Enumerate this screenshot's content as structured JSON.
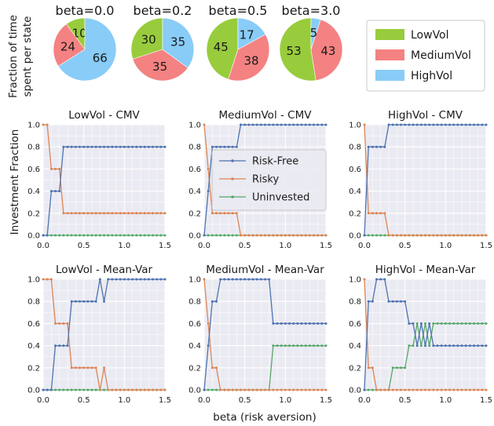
{
  "colors": {
    "LowVol": "#98cc3c",
    "MediumVol": "#f48282",
    "HighVol": "#88ccf7",
    "Risk-Free": "#4c72b0",
    "Risky": "#dd8452",
    "Uninvested": "#55a868"
  },
  "chart_data": {
    "pies": {
      "type": "pie",
      "ylabel_lines": [
        "Fraction of time",
        "spent per state"
      ],
      "legend": {
        "placement": "top-right",
        "labels": [
          "LowVol",
          "MediumVol",
          "HighVol"
        ]
      },
      "charts": [
        {
          "title": "beta=0.0",
          "labels": [
            "LowVol",
            "MediumVol",
            "HighVol"
          ],
          "values": [
            10,
            24,
            66
          ]
        },
        {
          "title": "beta=0.2",
          "labels": [
            "LowVol",
            "MediumVol",
            "HighVol"
          ],
          "values": [
            30,
            35,
            35
          ]
        },
        {
          "title": "beta=0.5",
          "labels": [
            "LowVol",
            "MediumVol",
            "HighVol"
          ],
          "values": [
            45,
            38,
            17
          ]
        },
        {
          "title": "beta=3.0",
          "labels": [
            "LowVol",
            "MediumVol",
            "HighVol"
          ],
          "values": [
            53,
            43,
            5
          ]
        }
      ]
    },
    "lines": {
      "type": "line",
      "ylabel": "Investment Fraction",
      "xlabel": "beta (risk aversion)",
      "xlim": [
        0,
        1.5
      ],
      "ylim": [
        0,
        1.0
      ],
      "xticks": [
        "0.0",
        "0.5",
        "1.0",
        "1.5"
      ],
      "yticks": [
        "0.0",
        "0.2",
        "0.4",
        "0.6",
        "0.8",
        "1.0"
      ],
      "grid": true,
      "legend": {
        "placement": "center",
        "labels": [
          "Risk-Free",
          "Risky",
          "Uninvested"
        ]
      },
      "panels": [
        {
          "title": "LowVol - CMV",
          "series": [
            {
              "name": "Risk-Free",
              "x": [
                0,
                0.05,
                0.1,
                0.15,
                0.2,
                0.25,
                0.3,
                1.5
              ],
              "y": [
                0,
                0,
                0.4,
                0.4,
                0.4,
                0.8,
                0.8,
                0.8
              ]
            },
            {
              "name": "Risky",
              "x": [
                0,
                0.05,
                0.1,
                0.15,
                0.2,
                0.25,
                0.3,
                1.5
              ],
              "y": [
                1,
                1,
                0.6,
                0.6,
                0.6,
                0.2,
                0.2,
                0.2
              ]
            },
            {
              "name": "Uninvested",
              "x": [
                0,
                1.5
              ],
              "y": [
                0,
                0
              ]
            }
          ]
        },
        {
          "title": "MediumVol - CMV",
          "series": [
            {
              "name": "Risk-Free",
              "x": [
                0,
                0.05,
                0.1,
                0.15,
                0.2,
                0.25,
                0.3,
                0.35,
                0.4,
                0.45,
                1.5
              ],
              "y": [
                0,
                0.4,
                0.8,
                0.8,
                0.8,
                0.8,
                0.8,
                0.8,
                0.8,
                1,
                1
              ]
            },
            {
              "name": "Risky",
              "x": [
                0,
                0.05,
                0.1,
                0.15,
                0.2,
                0.25,
                0.3,
                0.35,
                0.4,
                0.45,
                1.5
              ],
              "y": [
                1,
                0.6,
                0.2,
                0.2,
                0.2,
                0.2,
                0.2,
                0.2,
                0.2,
                0,
                0
              ]
            },
            {
              "name": "Uninvested",
              "x": [
                0,
                1.5
              ],
              "y": [
                0,
                0
              ]
            }
          ]
        },
        {
          "title": "HighVol - CMV",
          "series": [
            {
              "name": "Risk-Free",
              "x": [
                0,
                0.05,
                0.1,
                0.15,
                0.2,
                0.25,
                0.3,
                1.5
              ],
              "y": [
                0,
                0.8,
                0.8,
                0.8,
                0.8,
                0.8,
                1,
                1
              ]
            },
            {
              "name": "Risky",
              "x": [
                0,
                0.05,
                0.1,
                0.15,
                0.2,
                0.25,
                0.3,
                1.5
              ],
              "y": [
                1,
                0.2,
                0.2,
                0.2,
                0.2,
                0.2,
                0,
                0
              ]
            },
            {
              "name": "Uninvested",
              "x": [
                0,
                1.5
              ],
              "y": [
                0,
                0
              ]
            }
          ]
        },
        {
          "title": "LowVol - Mean-Var",
          "series": [
            {
              "name": "Risk-Free",
              "x": [
                0,
                0.1,
                0.15,
                0.2,
                0.25,
                0.3,
                0.35,
                0.4,
                0.45,
                0.5,
                0.55,
                0.6,
                0.65,
                0.7,
                0.75,
                0.8,
                0.85,
                1.5
              ],
              "y": [
                0,
                0,
                0.4,
                0.4,
                0.4,
                0.4,
                0.8,
                0.8,
                0.8,
                0.8,
                0.8,
                0.8,
                0.8,
                1,
                0.8,
                1,
                1,
                1
              ]
            },
            {
              "name": "Risky",
              "x": [
                0,
                0.1,
                0.15,
                0.2,
                0.25,
                0.3,
                0.35,
                0.4,
                0.45,
                0.5,
                0.55,
                0.6,
                0.65,
                0.7,
                0.75,
                0.8,
                0.85,
                1.5
              ],
              "y": [
                1,
                1,
                0.6,
                0.6,
                0.6,
                0.6,
                0.2,
                0.2,
                0.2,
                0.2,
                0.2,
                0.2,
                0.2,
                0,
                0.2,
                0,
                0,
                0
              ]
            },
            {
              "name": "Uninvested",
              "x": [
                0,
                1.5
              ],
              "y": [
                0,
                0
              ]
            }
          ]
        },
        {
          "title": "MediumVol - Mean-Var",
          "series": [
            {
              "name": "Risk-Free",
              "x": [
                0,
                0.05,
                0.1,
                0.15,
                0.2,
                0.25,
                0.75,
                0.8,
                0.85,
                1.5
              ],
              "y": [
                0,
                0.4,
                0.8,
                0.8,
                1,
                1,
                1,
                1,
                0.6,
                0.6
              ]
            },
            {
              "name": "Risky",
              "x": [
                0,
                0.05,
                0.1,
                0.15,
                0.2,
                0.25,
                1.5
              ],
              "y": [
                1,
                0.6,
                0.2,
                0.2,
                0,
                0,
                0
              ]
            },
            {
              "name": "Uninvested",
              "x": [
                0,
                0.8,
                0.85,
                1.5
              ],
              "y": [
                0,
                0,
                0.4,
                0.4
              ]
            }
          ]
        },
        {
          "title": "HighVol - Mean-Var",
          "series": [
            {
              "name": "Risk-Free",
              "x": [
                0,
                0.05,
                0.1,
                0.15,
                0.2,
                0.25,
                0.3,
                0.35,
                0.4,
                0.45,
                0.5,
                0.55,
                0.6,
                0.65,
                0.7,
                0.75,
                0.8,
                0.85,
                1.5
              ],
              "y": [
                0,
                0.8,
                0.8,
                1,
                1,
                1,
                0.8,
                0.8,
                0.8,
                0.8,
                0.8,
                0.6,
                0.6,
                0.4,
                0.6,
                0.4,
                0.6,
                0.4,
                0.4
              ]
            },
            {
              "name": "Risky",
              "x": [
                0,
                0.05,
                0.1,
                0.15,
                0.2,
                0.25,
                0.3,
                1.5
              ],
              "y": [
                1,
                0.2,
                0.2,
                0,
                0,
                0,
                0,
                0
              ]
            },
            {
              "name": "Uninvested",
              "x": [
                0,
                0.3,
                0.35,
                0.4,
                0.45,
                0.5,
                0.55,
                0.6,
                0.65,
                0.7,
                0.75,
                0.8,
                0.85,
                1.5
              ],
              "y": [
                0,
                0,
                0.2,
                0.2,
                0.2,
                0.2,
                0.4,
                0.4,
                0.6,
                0.4,
                0.6,
                0.4,
                0.6,
                0.6
              ]
            }
          ]
        }
      ]
    }
  }
}
